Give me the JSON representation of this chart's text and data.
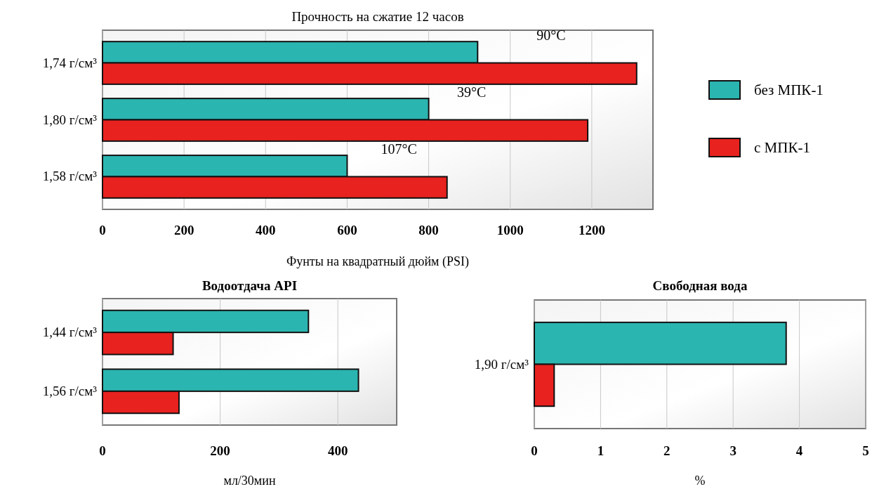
{
  "chart_data": [
    {
      "type": "bar",
      "orientation": "horizontal",
      "title": "Прочность на сжатие 12 часов",
      "xlabel": "Фунты на квадратный дюйм (PSI)",
      "categories": [
        "1,74 г/см³",
        "1,80 г/см³",
        "1,58 г/см³"
      ],
      "series": [
        {
          "name": "без МПК-1",
          "color": "#2bb5b0",
          "values": [
            920,
            800,
            600
          ]
        },
        {
          "name": "с МПК-1",
          "color": "#e8221f",
          "values": [
            1310,
            1190,
            845
          ]
        }
      ],
      "xlim": [
        0,
        1350
      ],
      "xticks": [
        0,
        200,
        400,
        600,
        800,
        1000,
        1200
      ],
      "grid": "x",
      "legend": "right",
      "annotations": [
        {
          "text": "90°C",
          "x": 1100,
          "y": "1,74 г/см³"
        },
        {
          "text": "39°C",
          "x": 905,
          "y": "1,80 г/см³"
        },
        {
          "text": "107°C",
          "x": 727,
          "y": "1,58 г/см³"
        }
      ]
    },
    {
      "type": "bar",
      "orientation": "horizontal",
      "title": "Водоотдача API",
      "xlabel": "мл/30мин",
      "categories": [
        "1,44 г/см³",
        "1,56 г/см³"
      ],
      "series": [
        {
          "color": "#2bb5b0",
          "values": [
            350,
            435
          ]
        },
        {
          "color": "#e8221f",
          "values": [
            120,
            130
          ]
        }
      ],
      "xlim": [
        0,
        500
      ],
      "xticks": [
        0,
        200,
        400
      ],
      "grid": "x"
    },
    {
      "type": "bar",
      "orientation": "horizontal",
      "title": "Свободная вода",
      "xlabel": "%",
      "categories": [
        "1,90 г/см³"
      ],
      "series": [
        {
          "color": "#2bb5b0",
          "values": [
            3.8
          ]
        },
        {
          "color": "#e8221f",
          "values": [
            0.3
          ]
        }
      ],
      "xlim": [
        0,
        5
      ],
      "xticks": [
        0,
        1,
        2,
        3,
        4,
        5
      ],
      "grid": "x"
    }
  ]
}
